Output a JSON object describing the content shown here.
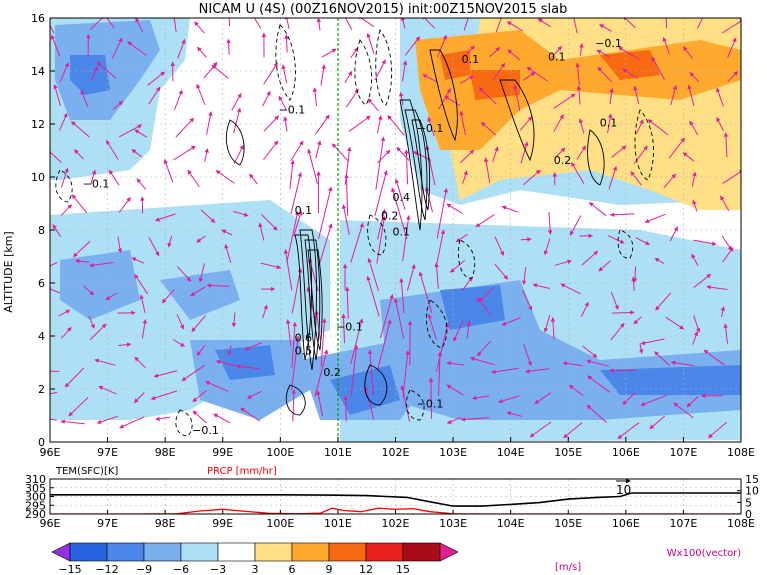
{
  "title": "NICAM U (4S) (00Z16NOV2015) init:00Z15NOV2015 slab",
  "chart_data": [
    {
      "type": "heatmap",
      "title": "NICAM U (4S) (00Z16NOV2015) init:00Z15NOV2015 slab",
      "xlabel": "",
      "ylabel": "ALTITUDE [km]",
      "xlim": [
        96,
        108
      ],
      "ylim": [
        0,
        16
      ],
      "x_ticks": [
        "96E",
        "97E",
        "98E",
        "99E",
        "100E",
        "101E",
        "102E",
        "103E",
        "104E",
        "105E",
        "106E",
        "107E",
        "108E"
      ],
      "y_ticks": [
        "0",
        "2",
        "4",
        "6",
        "8",
        "10",
        "12",
        "14",
        "16"
      ],
      "grid": true,
      "colorbar": {
        "levels": [
          -15,
          -12,
          -9,
          -6,
          -3,
          3,
          6,
          9,
          12,
          15
        ],
        "labels": [
          "−15",
          "−12",
          "−9",
          "−6",
          "−3",
          "3",
          "6",
          "9",
          "12",
          "15"
        ],
        "colors": [
          "#9a2ee6",
          "#2a63e0",
          "#4a87e8",
          "#7aaff0",
          "#aee0f5",
          "#ffffff",
          "#ffe086",
          "#ffaa2e",
          "#f86a12",
          "#e8201e",
          "#a80a18",
          "#e02090"
        ],
        "units": "[m/s]"
      },
      "vector_label": "Wx100(vector)",
      "contour_labels": [
        {
          "text": "−0.1",
          "x": 100.2,
          "y": 12.4
        },
        {
          "text": "−0.1",
          "x": 96.8,
          "y": 9.6
        },
        {
          "text": "0.1",
          "x": 100.4,
          "y": 8.6
        },
        {
          "text": "−0.1",
          "x": 102.6,
          "y": 11.7
        },
        {
          "text": "0.1",
          "x": 103.3,
          "y": 14.3
        },
        {
          "text": "0.1",
          "x": 104.8,
          "y": 14.4
        },
        {
          "text": "−0.1",
          "x": 105.7,
          "y": 14.9
        },
        {
          "text": "0.1",
          "x": 105.7,
          "y": 11.9
        },
        {
          "text": "0.2",
          "x": 104.9,
          "y": 10.5
        },
        {
          "text": "0.2",
          "x": 101.9,
          "y": 8.4
        },
        {
          "text": "0.1",
          "x": 102.1,
          "y": 7.8
        },
        {
          "text": "0.4",
          "x": 102.1,
          "y": 9.1
        },
        {
          "text": "−0.1",
          "x": 101.2,
          "y": 4.2
        },
        {
          "text": "0.6",
          "x": 100.4,
          "y": 3.8
        },
        {
          "text": "0.5",
          "x": 100.4,
          "y": 3.3
        },
        {
          "text": "0.2",
          "x": 100.9,
          "y": 2.5
        },
        {
          "text": "−0.1",
          "x": 102.6,
          "y": 1.3
        },
        {
          "text": "−0.1",
          "x": 98.7,
          "y": 0.3
        }
      ]
    },
    {
      "type": "line",
      "x_range": [
        96,
        108
      ],
      "x_ticks": [
        "96E",
        "97E",
        "98E",
        "99E",
        "100E",
        "101E",
        "102E",
        "103E",
        "104E",
        "105E",
        "106E",
        "107E",
        "108E"
      ],
      "left_axis": {
        "label": "TEM(SFC)[K]",
        "range": [
          290,
          310
        ],
        "ticks": [
          "290",
          "295",
          "300",
          "305",
          "310"
        ]
      },
      "right_axis": {
        "label": "PRCP [mm/hr]",
        "range": [
          0,
          15
        ],
        "ticks": [
          "0",
          "5",
          "10",
          "15"
        ]
      },
      "annotation": "10",
      "series": [
        {
          "name": "TEM(SFC)[K]",
          "color": "#000000",
          "x": [
            96,
            97,
            98,
            99,
            100,
            100.8,
            101.5,
            102.2,
            102.6,
            103,
            103.5,
            104,
            104.5,
            105,
            105.5,
            105.9,
            106.1,
            107,
            108
          ],
          "values": [
            301,
            301,
            301,
            301,
            301,
            300.8,
            300.5,
            299.5,
            297,
            294.5,
            294.5,
            295.5,
            296.5,
            298.5,
            299.5,
            300,
            302,
            302,
            302
          ]
        },
        {
          "name": "PRCP [mm/hr]",
          "color": "#ff0000",
          "x": [
            96,
            97.5,
            98.2,
            98.6,
            99,
            99.4,
            99.8,
            100.3,
            100.7,
            100.9,
            101.1,
            101.4,
            101.7,
            102,
            102.3,
            102.6,
            103,
            103.5,
            108
          ],
          "values": [
            0,
            0,
            0.1,
            1.3,
            2,
            1.1,
            0.3,
            0.1,
            0.4,
            2.5,
            1.5,
            1,
            2.5,
            2,
            2.3,
            1,
            0.1,
            0,
            0
          ]
        }
      ]
    }
  ]
}
